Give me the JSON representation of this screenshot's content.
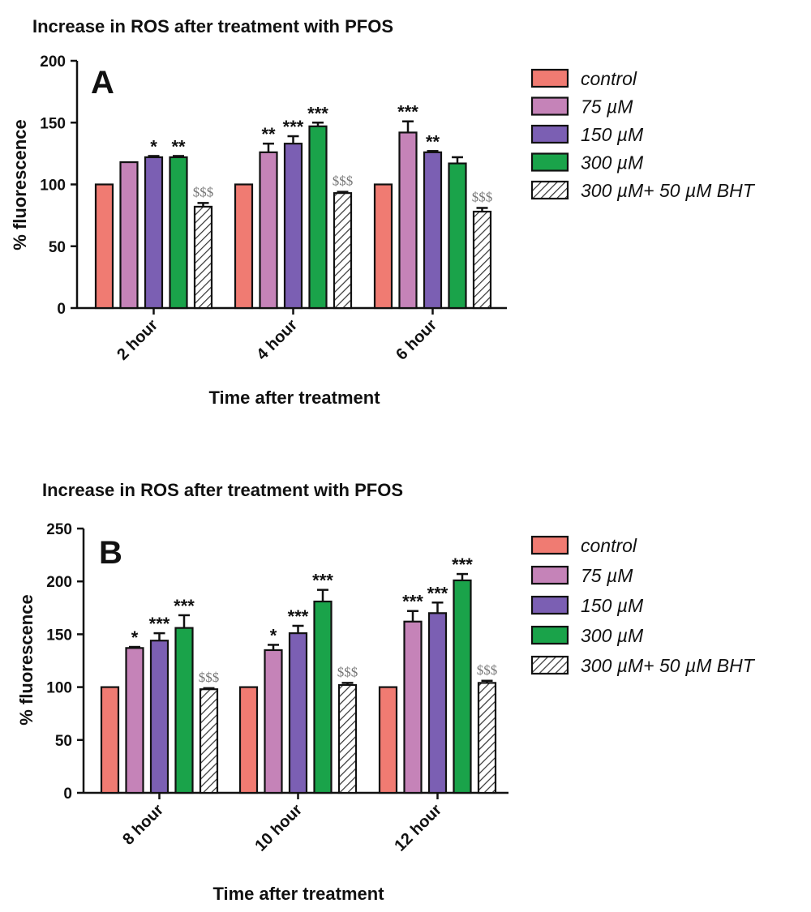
{
  "chart_data": [
    {
      "type": "bar",
      "panel_label": "A",
      "title": "Increase in ROS after treatment with PFOS",
      "xlabel": "Time after treatment",
      "ylabel": "% fluorescence",
      "ylim": [
        0,
        200
      ],
      "yticks": [
        "0",
        "50",
        "100",
        "150",
        "200"
      ],
      "categories": [
        "2 hour",
        "4 hour",
        "6 hour"
      ],
      "legend_position": "right",
      "series": [
        {
          "name": "control",
          "color": "#f07b72",
          "pattern": "solid",
          "values": [
            100,
            100,
            100
          ],
          "errors": [
            0,
            0,
            0
          ],
          "marks": [
            "",
            "",
            ""
          ]
        },
        {
          "name": "75 µM",
          "color": "#c583b8",
          "pattern": "solid",
          "values": [
            118,
            126,
            142
          ],
          "errors": [
            0,
            7,
            9
          ],
          "marks": [
            "",
            "**",
            "***"
          ]
        },
        {
          "name": "150 µM",
          "color": "#7b5fb3",
          "pattern": "solid",
          "values": [
            122,
            133,
            126
          ],
          "errors": [
            1,
            6,
            1
          ],
          "marks": [
            "*",
            "***",
            "**"
          ]
        },
        {
          "name": "300 µM",
          "color": "#1aa34a",
          "pattern": "solid",
          "values": [
            122,
            147,
            117
          ],
          "errors": [
            1,
            3,
            5
          ],
          "marks": [
            "**",
            "***",
            ""
          ]
        },
        {
          "name": "300 µM+ 50 µM BHT",
          "color": "#ffffff",
          "pattern": "hatch",
          "values": [
            82,
            93,
            78
          ],
          "errors": [
            3,
            1,
            3
          ],
          "marks": [
            "$$$",
            "$$$",
            "$$$"
          ]
        }
      ]
    },
    {
      "type": "bar",
      "panel_label": "B",
      "title": "Increase in ROS after treatment with PFOS",
      "xlabel": "Time after treatment",
      "ylabel": "% fluorescence",
      "ylim": [
        0,
        250
      ],
      "yticks": [
        "0",
        "50",
        "100",
        "150",
        "200",
        "250"
      ],
      "categories": [
        "8 hour",
        "10 hour",
        "12 hour"
      ],
      "legend_position": "right",
      "series": [
        {
          "name": "control",
          "color": "#f07b72",
          "pattern": "solid",
          "values": [
            100,
            100,
            100
          ],
          "errors": [
            0,
            0,
            0
          ],
          "marks": [
            "",
            "",
            ""
          ]
        },
        {
          "name": "75 µM",
          "color": "#c583b8",
          "pattern": "solid",
          "values": [
            137,
            135,
            162
          ],
          "errors": [
            1,
            5,
            10
          ],
          "marks": [
            "*",
            "*",
            "***"
          ]
        },
        {
          "name": "150 µM",
          "color": "#7b5fb3",
          "pattern": "solid",
          "values": [
            144,
            151,
            170
          ],
          "errors": [
            7,
            7,
            10
          ],
          "marks": [
            "***",
            "***",
            "***"
          ]
        },
        {
          "name": "300 µM",
          "color": "#1aa34a",
          "pattern": "solid",
          "values": [
            156,
            181,
            201
          ],
          "errors": [
            12,
            11,
            6
          ],
          "marks": [
            "***",
            "***",
            "***"
          ]
        },
        {
          "name": "300 µM+ 50 µM BHT",
          "color": "#ffffff",
          "pattern": "hatch",
          "values": [
            98,
            102,
            104
          ],
          "errors": [
            1,
            2,
            2
          ],
          "marks": [
            "$$$",
            "$$$",
            "$$$"
          ]
        }
      ]
    }
  ]
}
